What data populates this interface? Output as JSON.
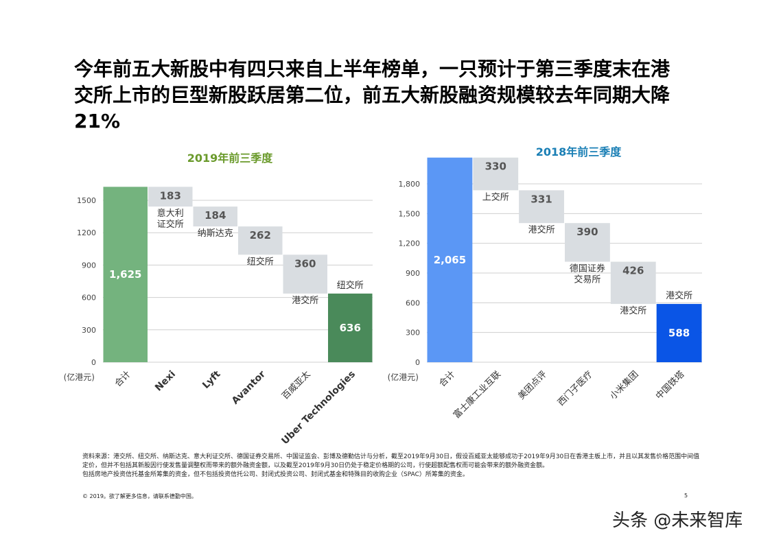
{
  "title": "今年前五大新股中有四只来自上半年榜单，一只预计于第三季度末在港交所上市的巨型新股跃居第二位，前五大新股融资规模较去年同期大降21%",
  "chart_data": [
    {
      "type": "waterfall",
      "title": "2019年前三季度",
      "title_color": "#6a9a2b",
      "ylabel": "(亿港元)",
      "ylim": [
        0,
        1600
      ],
      "yticks": [
        0,
        300,
        600,
        900,
        1200,
        1500
      ],
      "tick_format": "plain",
      "grid": true,
      "categories": [
        "合计",
        "Nexi",
        "Lyft",
        "Avantor",
        "百威亚太",
        "Uber Technologies"
      ],
      "category_bold": [
        false,
        true,
        true,
        true,
        false,
        true
      ],
      "values": [
        1625,
        183,
        184,
        262,
        360,
        636
      ],
      "value_labels": [
        "1,625",
        "183",
        "184",
        "262",
        "360",
        "636"
      ],
      "exchanges": [
        "",
        "意大利\n证交所",
        "纳斯达克",
        "纽交所",
        "港交所",
        "纽交所"
      ],
      "colors": {
        "total": "#74b37e",
        "step": "#d9dde1",
        "last": "#4a8a5a"
      }
    },
    {
      "type": "waterfall",
      "title": "2018年前三季度",
      "title_color": "#1a7fb5",
      "ylabel": "(亿港元)",
      "ylim": [
        0,
        2065
      ],
      "yticks": [
        0,
        300,
        600,
        900,
        1200,
        1500,
        1800
      ],
      "tick_format": "comma",
      "grid": true,
      "categories": [
        "合计",
        "富士康工业互联",
        "美团点评",
        "西门子医疗",
        "小米集团",
        "中国铁塔"
      ],
      "category_bold": [
        false,
        false,
        false,
        false,
        false,
        false
      ],
      "values": [
        2065,
        330,
        331,
        390,
        426,
        588
      ],
      "value_labels": [
        "2,065",
        "330",
        "331",
        "390",
        "426",
        "588"
      ],
      "exchanges": [
        "",
        "上交所",
        "港交所",
        "德国证券\n交易所",
        "港交所",
        "港交所"
      ],
      "colors": {
        "total": "#5b97f5",
        "step": "#d9dde1",
        "last": "#0a55e6"
      }
    }
  ],
  "notes": [
    "资料来源：港交所、纽交所、纳斯达克、意大利证交所、德国证券交易所、中国证监会、彭博及德勤估计与分析，截至2019年9月30日，假设百威亚太能够成功于2019年9月30日在香港主板上市，并且以其发售价格范围中间值定价，但并不包括其新股因行使发售量调整权而带来的额外融资金额，以及截至2019年9月30日仍处于稳定价格期的公司，行使超额配售权而可能会带来的额外融资金额。",
    "包括房地产投资信托基金所筹集的资金，但不包括投资信托公司、封闭式投资公司、封闭式基金和特殊目的收购企业（SPAC）所筹集的资金。"
  ],
  "copyright": "© 2019。欲了解更多信息，请联系德勤中国。",
  "page_number": "5",
  "watermark": "头条 @未来智库"
}
